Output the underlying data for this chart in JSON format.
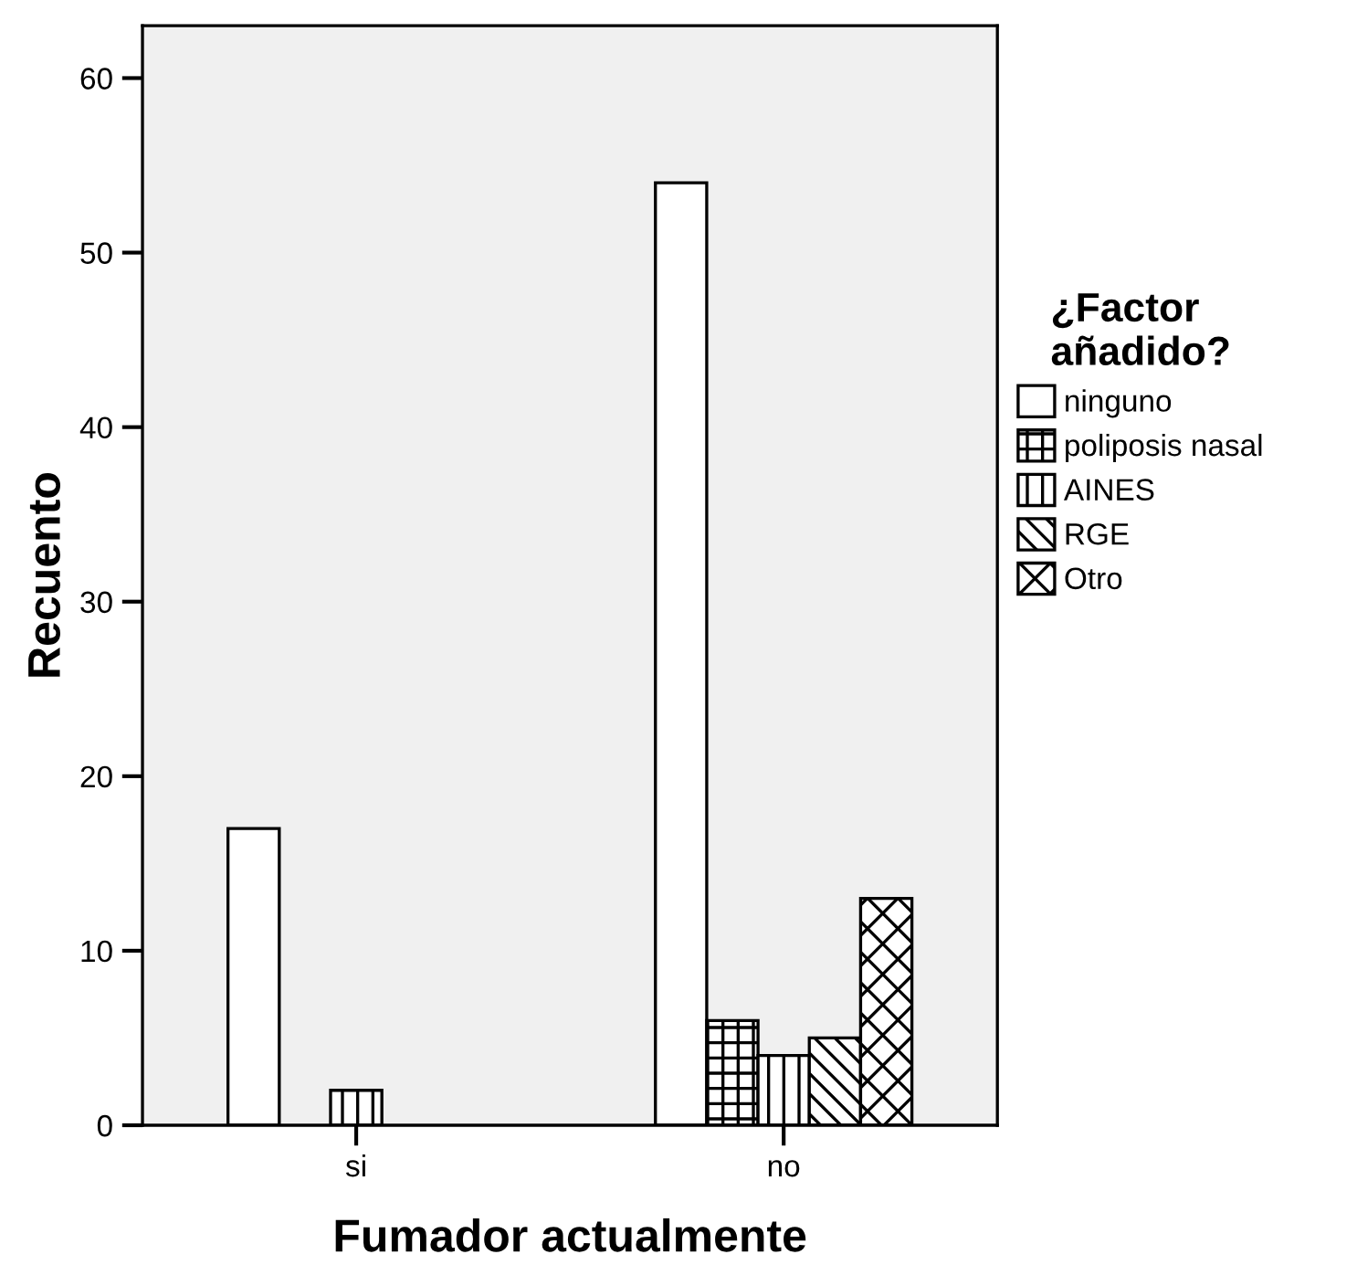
{
  "chart_data": {
    "type": "bar",
    "xlabel": "Fumador actualmente",
    "ylabel": "Recuento",
    "legend_title": "¿Factor\nañadido?",
    "categories": [
      "si",
      "no"
    ],
    "series": [
      {
        "name": "ninguno",
        "color": "#ffffff",
        "values": [
          17,
          54
        ]
      },
      {
        "name": "poliposis nasal",
        "color": "#ffffff",
        "values": [
          null,
          6
        ]
      },
      {
        "name": "AINES",
        "color": "#ffffff",
        "values": [
          2,
          4
        ]
      },
      {
        "name": "RGE",
        "color": "#ffffff",
        "values": [
          null,
          5
        ]
      },
      {
        "name": "Otro",
        "color": "#ffffff",
        "values": [
          null,
          13
        ]
      }
    ],
    "ylim": [
      0,
      63
    ],
    "yticks": [
      0,
      10,
      20,
      30,
      40,
      50,
      60
    ],
    "grid": false,
    "legend": "right"
  }
}
